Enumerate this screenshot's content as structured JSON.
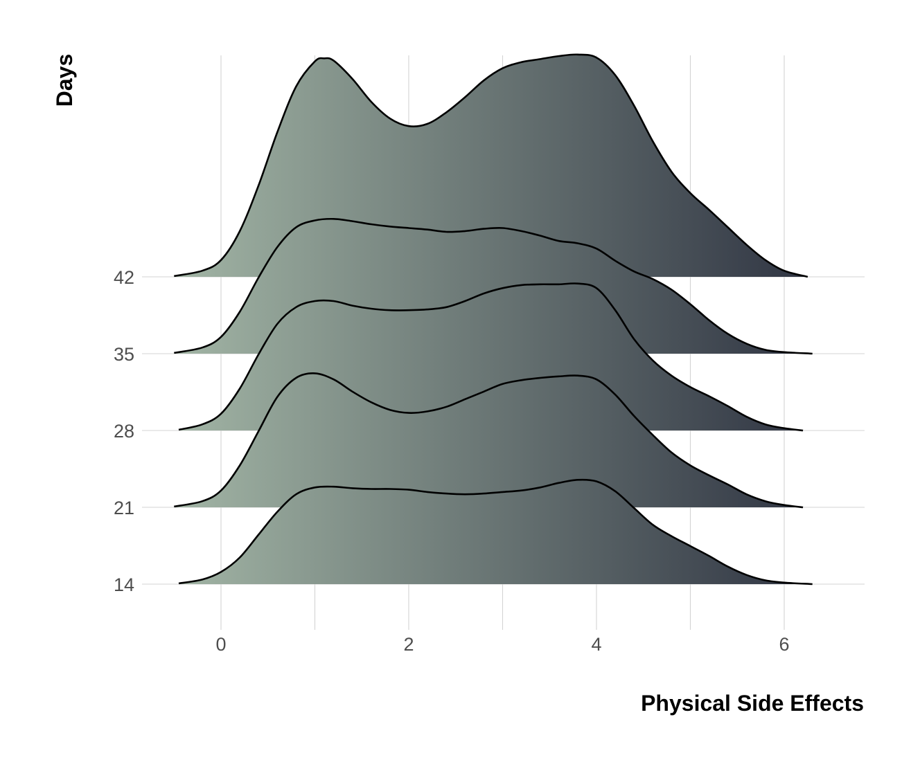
{
  "chart_data": {
    "type": "ridgeline",
    "xlabel": "Physical Side Effects",
    "ylabel": "Days",
    "x_ticks": [
      0,
      2,
      4,
      6
    ],
    "x_minor_gridlines": [
      1,
      3,
      5
    ],
    "xlim": [
      -0.9,
      6.9
    ],
    "y_ticks": [
      14,
      21,
      28,
      35,
      42
    ],
    "grid": true,
    "fill_gradient": {
      "low_color": "#a2b5a5",
      "high_color": "#2f3442"
    },
    "series": [
      {
        "name": "14",
        "x": [
          -0.45,
          -0.2,
          0,
          0.2,
          0.4,
          0.6,
          0.8,
          1.0,
          1.2,
          1.4,
          1.6,
          1.8,
          2.0,
          2.2,
          2.4,
          2.6,
          2.8,
          3.0,
          3.2,
          3.4,
          3.6,
          3.8,
          4.0,
          4.2,
          4.4,
          4.6,
          4.8,
          5.0,
          5.2,
          5.4,
          5.6,
          5.8,
          6.0,
          6.3
        ],
        "density": [
          0.01,
          0.06,
          0.16,
          0.35,
          0.65,
          0.95,
          1.18,
          1.27,
          1.28,
          1.26,
          1.25,
          1.25,
          1.24,
          1.21,
          1.19,
          1.18,
          1.19,
          1.21,
          1.23,
          1.27,
          1.33,
          1.37,
          1.35,
          1.22,
          1.0,
          0.78,
          0.63,
          0.5,
          0.37,
          0.23,
          0.12,
          0.05,
          0.02,
          0.0
        ]
      },
      {
        "name": "21",
        "x": [
          -0.5,
          -0.2,
          0,
          0.2,
          0.4,
          0.6,
          0.8,
          1.0,
          1.2,
          1.4,
          1.6,
          1.8,
          2.0,
          2.2,
          2.4,
          2.6,
          2.8,
          3.0,
          3.2,
          3.4,
          3.6,
          3.8,
          4.0,
          4.2,
          4.4,
          4.6,
          4.8,
          5.0,
          5.2,
          5.4,
          5.6,
          5.8,
          6.0,
          6.2
        ],
        "density": [
          0.01,
          0.08,
          0.22,
          0.55,
          1.0,
          1.45,
          1.7,
          1.76,
          1.68,
          1.52,
          1.38,
          1.28,
          1.24,
          1.26,
          1.32,
          1.42,
          1.52,
          1.62,
          1.67,
          1.7,
          1.72,
          1.73,
          1.68,
          1.48,
          1.2,
          0.95,
          0.72,
          0.55,
          0.42,
          0.3,
          0.17,
          0.08,
          0.03,
          0.0
        ]
      },
      {
        "name": "28",
        "x": [
          -0.45,
          -0.2,
          0,
          0.2,
          0.4,
          0.6,
          0.8,
          1.0,
          1.2,
          1.4,
          1.6,
          1.8,
          2.0,
          2.2,
          2.4,
          2.6,
          2.8,
          3.0,
          3.2,
          3.4,
          3.6,
          3.8,
          4.0,
          4.2,
          4.4,
          4.6,
          4.8,
          5.0,
          5.2,
          5.4,
          5.6,
          5.8,
          6.0,
          6.2
        ],
        "density": [
          0.01,
          0.08,
          0.22,
          0.55,
          1.0,
          1.4,
          1.62,
          1.7,
          1.7,
          1.64,
          1.6,
          1.58,
          1.58,
          1.59,
          1.62,
          1.7,
          1.8,
          1.87,
          1.91,
          1.92,
          1.92,
          1.93,
          1.87,
          1.58,
          1.2,
          0.92,
          0.72,
          0.57,
          0.45,
          0.32,
          0.18,
          0.08,
          0.03,
          0.0
        ]
      },
      {
        "name": "35",
        "x": [
          -0.5,
          -0.2,
          0,
          0.2,
          0.4,
          0.6,
          0.8,
          1.0,
          1.2,
          1.4,
          1.6,
          1.8,
          2.0,
          2.2,
          2.4,
          2.6,
          2.8,
          3.0,
          3.2,
          3.4,
          3.6,
          3.8,
          4.0,
          4.2,
          4.4,
          4.6,
          4.8,
          5.0,
          5.2,
          5.4,
          5.6,
          5.8,
          6.0,
          6.3
        ],
        "density": [
          0.01,
          0.08,
          0.22,
          0.55,
          1.0,
          1.4,
          1.66,
          1.75,
          1.77,
          1.74,
          1.7,
          1.67,
          1.65,
          1.63,
          1.6,
          1.61,
          1.64,
          1.65,
          1.61,
          1.55,
          1.48,
          1.45,
          1.38,
          1.22,
          1.08,
          0.98,
          0.84,
          0.65,
          0.44,
          0.26,
          0.13,
          0.05,
          0.02,
          0.0
        ]
      },
      {
        "name": "42",
        "x": [
          -0.5,
          -0.2,
          0,
          0.2,
          0.4,
          0.6,
          0.8,
          1.0,
          1.1,
          1.2,
          1.4,
          1.6,
          1.8,
          2.0,
          2.2,
          2.4,
          2.6,
          2.8,
          3.0,
          3.2,
          3.4,
          3.6,
          3.8,
          4.0,
          4.2,
          4.4,
          4.6,
          4.8,
          5.0,
          5.2,
          5.4,
          5.6,
          5.8,
          6.0,
          6.25
        ],
        "density": [
          0.01,
          0.08,
          0.22,
          0.6,
          1.2,
          1.9,
          2.5,
          2.83,
          2.87,
          2.84,
          2.6,
          2.3,
          2.08,
          1.98,
          2.01,
          2.16,
          2.36,
          2.58,
          2.74,
          2.82,
          2.86,
          2.9,
          2.92,
          2.88,
          2.65,
          2.25,
          1.78,
          1.38,
          1.1,
          0.88,
          0.65,
          0.42,
          0.22,
          0.08,
          0.0
        ]
      }
    ]
  }
}
